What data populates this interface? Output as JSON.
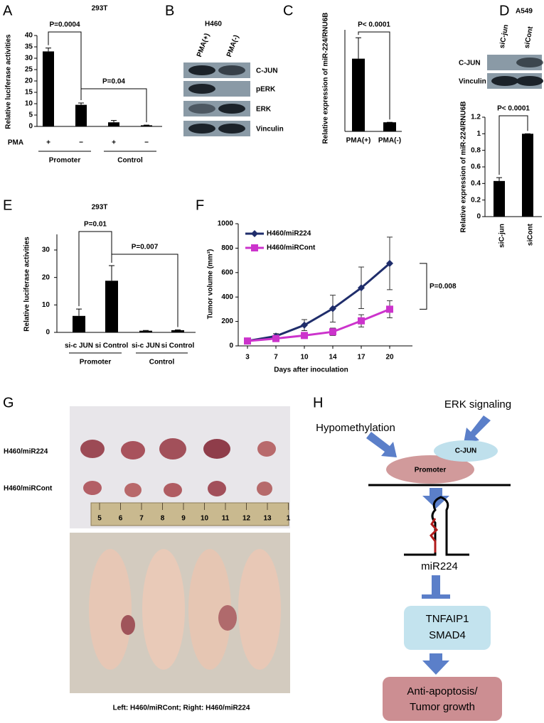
{
  "panel_letters": [
    "A",
    "B",
    "C",
    "D",
    "E",
    "F",
    "G",
    "H"
  ],
  "chart_data": [
    {
      "type": "bar",
      "title": "293T",
      "y_label": "Relative luciferase activities",
      "categories": [
        "+",
        "−",
        "+",
        "−"
      ],
      "category_row_label": "PMA",
      "groups": [
        "Promoter",
        "Control"
      ],
      "values": [
        33,
        9.5,
        1.8,
        0.5
      ],
      "errors": [
        1.5,
        0.8,
        0.8,
        0.1
      ],
      "color": "#000000",
      "ylim": [
        0,
        40
      ],
      "yticks": [
        0,
        5,
        10,
        15,
        20,
        25,
        30,
        35,
        40
      ],
      "annotations": [
        "P=0.0004",
        "P=0.04"
      ]
    },
    {
      "type": "bar",
      "y_label": "Relative expression of miR-224/RNU6B",
      "categories": [
        "PMA(+)",
        "PMA(-)"
      ],
      "values": [
        8,
        1
      ],
      "errors": [
        2.3,
        0
      ],
      "color": "#000000",
      "annotations": [
        "P< 0.0001"
      ]
    },
    {
      "type": "bar",
      "y_label": "Relative expression of miR-224/RNU6B",
      "categories": [
        "siC-jun",
        "siCont"
      ],
      "values": [
        0.43,
        1
      ],
      "errors": [
        0.04,
        0
      ],
      "color": "#000000",
      "ylim": [
        0,
        1.2
      ],
      "yticks": [
        0,
        0.2,
        0.4,
        0.6,
        0.8,
        1,
        1.2
      ],
      "annotations": [
        "P< 0.0001"
      ]
    },
    {
      "type": "bar",
      "title": "293T",
      "y_label": "Relative luciferase activities",
      "categories": [
        "si-c JUN",
        "si Control",
        "si-c JUN",
        "si Control"
      ],
      "groups": [
        "Promoter",
        "Control"
      ],
      "values": [
        6,
        18.8,
        0.6,
        0.8
      ],
      "errors": [
        2.5,
        5.5,
        0.1,
        0.1
      ],
      "color": "#000000",
      "ylim": [
        0,
        30
      ],
      "yticks": [
        0,
        10,
        20,
        30
      ],
      "annotations": [
        "P=0.01",
        "P=0.007"
      ]
    },
    {
      "type": "line",
      "x_label": "Days after inoculation",
      "y_label": "Tumor volume (mm³)",
      "categories": [
        "3",
        "7",
        "10",
        "14",
        "17",
        "20"
      ],
      "series": [
        {
          "name": "H460/miR224",
          "color": "#1f2d6b",
          "marker": "diamond",
          "values": [
            40,
            80,
            170,
            305,
            475,
            675
          ],
          "errors": [
            10,
            20,
            45,
            110,
            170,
            215
          ]
        },
        {
          "name": "H460/miRCont",
          "color": "#cc33cc",
          "marker": "square",
          "values": [
            40,
            60,
            85,
            115,
            205,
            300
          ],
          "errors": [
            10,
            15,
            20,
            30,
            50,
            70
          ]
        }
      ],
      "ylim": [
        0,
        1000
      ],
      "yticks": [
        0,
        200,
        400,
        600,
        800,
        1000
      ],
      "legend": "upper left",
      "annotations": [
        "P=0.008"
      ]
    }
  ],
  "blots": [
    {
      "title": "H460",
      "columns": [
        "PMA(+)",
        "PMA(-)"
      ],
      "rows": [
        "C-JUN",
        "pERK",
        "ERK",
        "Vinculin"
      ]
    },
    {
      "title": "A549",
      "columns": [
        "siC-jun",
        "siCont"
      ],
      "rows": [
        "C-JUN",
        "Vinculin"
      ]
    }
  ],
  "photo": {
    "row_labels": [
      "H460/miR224",
      "H460/miRCont"
    ],
    "ruler_ticks": [
      "5",
      "6",
      "7",
      "8",
      "9",
      "10",
      "11",
      "12",
      "13",
      "1"
    ],
    "caption": "Left: H460/miRCont; Right: H460/miR224"
  },
  "diagram": {
    "inputs": [
      "ERK signaling",
      "Hypomethylation"
    ],
    "factor": "C-JUN",
    "promoter": "Promoter",
    "mirna": "miR224",
    "targets": [
      "TNFAIP1",
      "SMAD4"
    ],
    "outcome": [
      "Anti-apoptosis/",
      "Tumor growth"
    ]
  }
}
